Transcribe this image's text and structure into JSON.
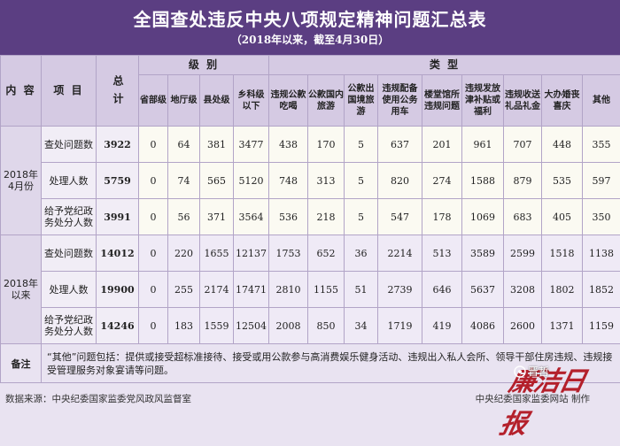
{
  "title": "全国查处违反中央八项规定精神问题汇总表",
  "subtitle": "（2018年以来，截至4月30日）",
  "headers": {
    "content": "内 容",
    "item": "项 目",
    "total": "总 计",
    "level_group": "级 别",
    "type_group": "类 型",
    "levels": [
      "省部级",
      "地厅级",
      "县处级",
      "乡科级以下"
    ],
    "types": [
      "违规公款吃喝",
      "公款国内旅游",
      "公款出国境旅游",
      "违规配备使用公务用车",
      "楼堂馆所违规问题",
      "违规发放津补贴或福利",
      "违规收送礼品礼金",
      "大办婚丧喜庆",
      "其他"
    ]
  },
  "groups": [
    {
      "label": "2018年4月份",
      "rows": [
        {
          "item": "查处问题数",
          "total": "3922",
          "levels": [
            "0",
            "64",
            "381",
            "3477"
          ],
          "types": [
            "438",
            "170",
            "5",
            "637",
            "201",
            "961",
            "707",
            "448",
            "355"
          ]
        },
        {
          "item": "处理人数",
          "total": "5759",
          "levels": [
            "0",
            "74",
            "565",
            "5120"
          ],
          "types": [
            "748",
            "313",
            "5",
            "820",
            "274",
            "1588",
            "879",
            "535",
            "597"
          ]
        },
        {
          "item": "给予党纪政务处分人数",
          "total": "3991",
          "levels": [
            "0",
            "56",
            "371",
            "3564"
          ],
          "types": [
            "536",
            "218",
            "5",
            "547",
            "178",
            "1069",
            "683",
            "405",
            "350"
          ]
        }
      ]
    },
    {
      "label": "2018年以来",
      "rows": [
        {
          "item": "查处问题数",
          "total": "14012",
          "levels": [
            "0",
            "220",
            "1655",
            "12137"
          ],
          "types": [
            "1753",
            "652",
            "36",
            "2214",
            "513",
            "3589",
            "2599",
            "1518",
            "1138"
          ]
        },
        {
          "item": "处理人数",
          "total": "19900",
          "levels": [
            "0",
            "255",
            "2174",
            "17471"
          ],
          "types": [
            "2810",
            "1155",
            "51",
            "2739",
            "646",
            "5637",
            "3208",
            "1802",
            "1852"
          ]
        },
        {
          "item": "给予党纪政务处分人数",
          "total": "14246",
          "levels": [
            "0",
            "183",
            "1559",
            "12504"
          ],
          "types": [
            "2008",
            "850",
            "34",
            "1719",
            "419",
            "4086",
            "2600",
            "1371",
            "1159"
          ]
        }
      ]
    }
  ],
  "note": {
    "label": "备注",
    "text": "“其他”问题包括：提供或接受超标准接待、接受或用公款参与高消费娱乐健身活动、违规出入私人会所、领导干部住房违规、违规接受管理服务对象宴请等问题。"
  },
  "footer": {
    "source": "数据来源：中央纪委国家监委党风政风监督室",
    "maker": "中央纪委国家监委网站 制作"
  },
  "watermark": "晋哲",
  "logo_text": "廉洁日报",
  "colors": {
    "header_bg": "#5b3e82",
    "logo": "#b0101b"
  }
}
